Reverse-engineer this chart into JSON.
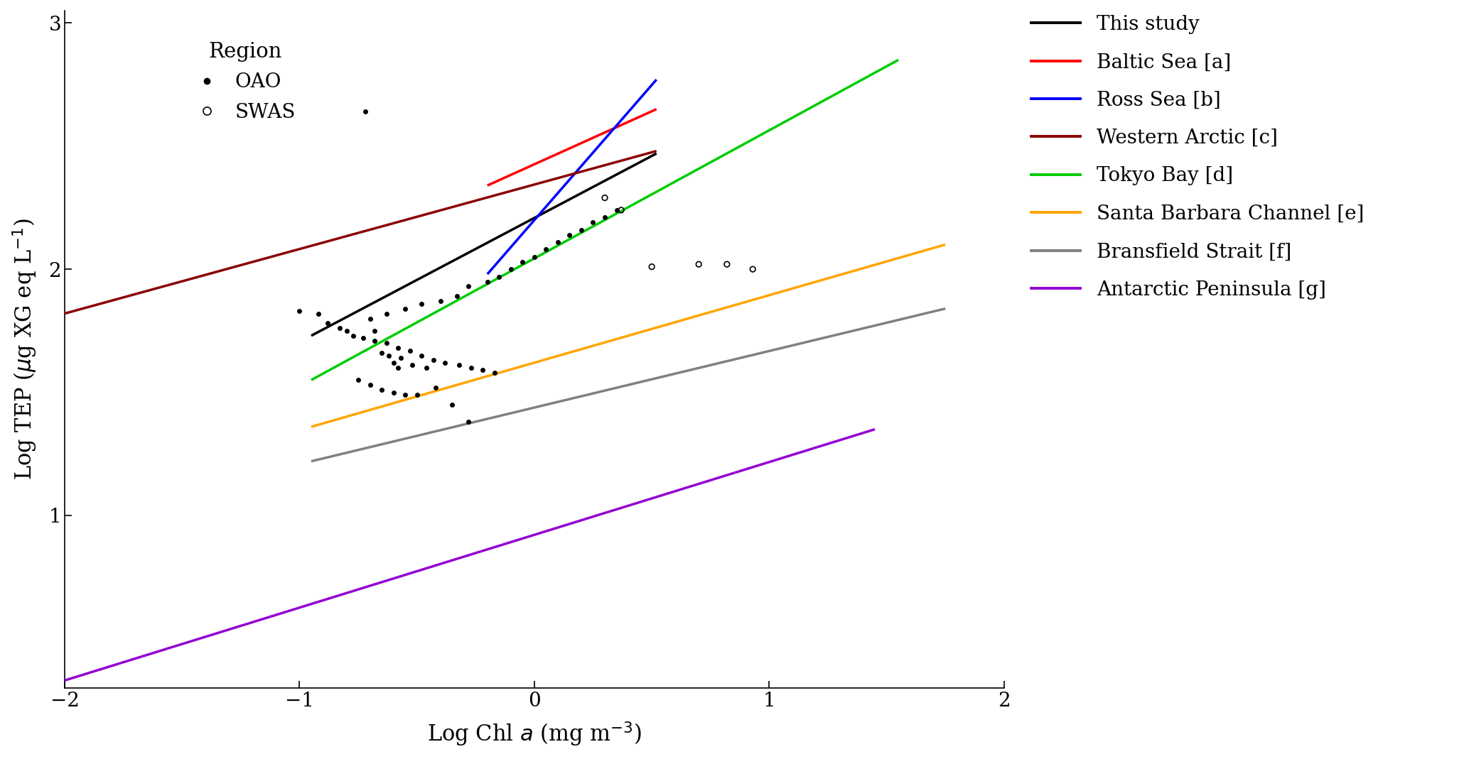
{
  "xlim": [
    -2.0,
    2.0
  ],
  "ylim": [
    0.3,
    3.05
  ],
  "xlabel": "Log Chl $a$ (mg m$^{-3}$)",
  "ylabel": "Log TEP ($\\mu$g XG eq L$^{-1}$)",
  "xticks": [
    -2.0,
    -1.0,
    0.0,
    1.0,
    2.0
  ],
  "yticks": [
    1.0,
    2.0,
    3.0
  ],
  "lines": [
    {
      "label": "This study",
      "color": "#000000",
      "x1": -0.95,
      "x2": 0.52,
      "y1": 1.73,
      "y2": 2.47,
      "lw": 2.5
    },
    {
      "label": "Baltic Sea [a]",
      "color": "#FF0000",
      "x1": -0.2,
      "x2": 0.52,
      "y1": 2.34,
      "y2": 2.65,
      "lw": 2.5
    },
    {
      "label": "Ross Sea [b]",
      "color": "#0000FF",
      "x1": -0.2,
      "x2": 0.52,
      "y1": 1.98,
      "y2": 2.77,
      "lw": 2.5
    },
    {
      "label": "Western Arctic [c]",
      "color": "#8B0000",
      "x1": -2.0,
      "x2": 0.52,
      "y1": 1.82,
      "y2": 2.48,
      "lw": 2.5
    },
    {
      "label": "Tokyo Bay [d]",
      "color": "#00CC00",
      "x1": -0.95,
      "x2": 1.55,
      "y1": 1.55,
      "y2": 2.85,
      "lw": 2.5
    },
    {
      "label": "Santa Barbara Channel [e]",
      "color": "#FFA500",
      "x1": -0.95,
      "x2": 1.75,
      "y1": 1.36,
      "y2": 2.1,
      "lw": 2.5
    },
    {
      "label": "Bransfield Strait [f]",
      "color": "#808080",
      "x1": -0.95,
      "x2": 1.75,
      "y1": 1.22,
      "y2": 1.84,
      "lw": 2.5
    },
    {
      "label": "Antarctic Peninsula [g]",
      "color": "#9400D3",
      "x1": -2.0,
      "x2": 1.45,
      "y1": 0.33,
      "y2": 1.35,
      "lw": 2.5
    }
  ],
  "oao_points": [
    [
      -0.72,
      2.64
    ],
    [
      -1.0,
      1.83
    ],
    [
      -0.92,
      1.82
    ],
    [
      -0.88,
      1.78
    ],
    [
      -0.83,
      1.76
    ],
    [
      -0.8,
      1.75
    ],
    [
      -0.77,
      1.73
    ],
    [
      -0.73,
      1.72
    ],
    [
      -0.68,
      1.71
    ],
    [
      -0.63,
      1.7
    ],
    [
      -0.58,
      1.68
    ],
    [
      -0.53,
      1.67
    ],
    [
      -0.48,
      1.65
    ],
    [
      -0.43,
      1.63
    ],
    [
      -0.38,
      1.62
    ],
    [
      -0.32,
      1.61
    ],
    [
      -0.27,
      1.6
    ],
    [
      -0.22,
      1.59
    ],
    [
      -0.17,
      1.58
    ],
    [
      -0.57,
      1.64
    ],
    [
      -0.62,
      1.65
    ],
    [
      -0.65,
      1.66
    ],
    [
      -0.6,
      1.62
    ],
    [
      -0.58,
      1.6
    ],
    [
      -0.52,
      1.61
    ],
    [
      -0.46,
      1.6
    ],
    [
      -0.68,
      1.75
    ],
    [
      -0.7,
      1.8
    ],
    [
      -0.63,
      1.82
    ],
    [
      -0.55,
      1.84
    ],
    [
      -0.48,
      1.86
    ],
    [
      -0.4,
      1.87
    ],
    [
      -0.33,
      1.89
    ],
    [
      -0.28,
      1.93
    ],
    [
      -0.2,
      1.95
    ],
    [
      -0.15,
      1.97
    ],
    [
      -0.1,
      2.0
    ],
    [
      -0.05,
      2.03
    ],
    [
      0.0,
      2.05
    ],
    [
      0.05,
      2.08
    ],
    [
      0.1,
      2.11
    ],
    [
      0.15,
      2.14
    ],
    [
      0.2,
      2.16
    ],
    [
      0.25,
      2.19
    ],
    [
      0.3,
      2.21
    ],
    [
      0.35,
      2.24
    ],
    [
      -0.5,
      1.49
    ],
    [
      -0.42,
      1.52
    ],
    [
      -0.35,
      1.45
    ],
    [
      -0.28,
      1.38
    ],
    [
      -0.75,
      1.55
    ],
    [
      -0.7,
      1.53
    ],
    [
      -0.65,
      1.51
    ],
    [
      -0.6,
      1.5
    ],
    [
      -0.55,
      1.49
    ]
  ],
  "swas_points": [
    [
      0.3,
      2.29
    ],
    [
      0.37,
      2.24
    ],
    [
      0.5,
      2.01
    ],
    [
      0.7,
      2.02
    ],
    [
      0.82,
      2.02
    ],
    [
      0.93,
      2.0
    ]
  ]
}
